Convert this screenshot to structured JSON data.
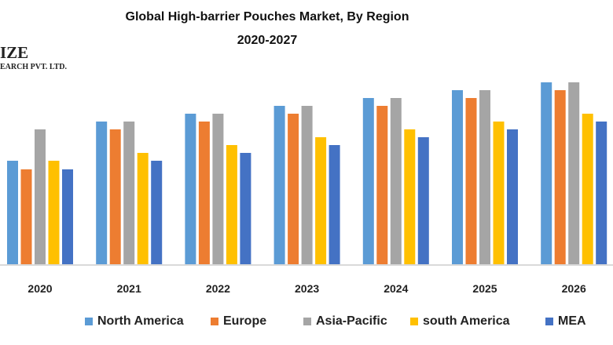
{
  "chart_data": {
    "type": "bar",
    "title": "Global High-barrier Pouches Market, By Region",
    "subtitle": "2020-2027",
    "xlabel": "",
    "ylabel": "",
    "categories": [
      "2020",
      "2021",
      "2022",
      "2023",
      "2024",
      "2025",
      "2026"
    ],
    "series": [
      {
        "name": "North America",
        "color": "#5B9BD5",
        "values": [
          13.2,
          18.2,
          19.2,
          20.2,
          21.2,
          22.2,
          23.2
        ]
      },
      {
        "name": "Europe",
        "color": "#ED7D31",
        "values": [
          12.1,
          17.2,
          18.2,
          19.2,
          20.2,
          21.2,
          22.2
        ]
      },
      {
        "name": "Asia-Pacific",
        "color": "#A5A5A5",
        "values": [
          17.2,
          18.2,
          19.2,
          20.2,
          21.2,
          22.2,
          23.2
        ]
      },
      {
        "name": "south America",
        "color": "#FFC000",
        "values": [
          13.2,
          14.2,
          15.2,
          16.2,
          17.2,
          18.2,
          19.2
        ]
      },
      {
        "name": "MEA",
        "color": "#4472C4",
        "values": [
          12.1,
          13.2,
          14.2,
          15.2,
          16.2,
          17.2,
          18.2
        ]
      }
    ],
    "ylim": [
      0,
      23.2
    ],
    "grid": false,
    "legend_position": "bottom"
  },
  "logo": {
    "line1": "IZE",
    "line2": "EARCH PVT. LTD."
  }
}
